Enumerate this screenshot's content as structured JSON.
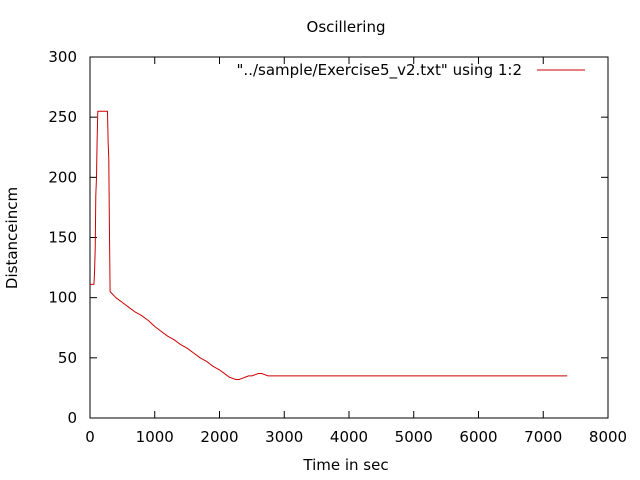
{
  "chart_data": {
    "type": "line",
    "title": "Oscillering",
    "xlabel": "Time in sec",
    "ylabel": "Distanceincm",
    "xlim": [
      0,
      8000
    ],
    "ylim": [
      0,
      300
    ],
    "xticks": [
      0,
      1000,
      2000,
      3000,
      4000,
      5000,
      6000,
      7000,
      8000
    ],
    "yticks": [
      0,
      50,
      100,
      150,
      200,
      250,
      300
    ],
    "xtick_labels": [
      "0",
      "1000",
      "2000",
      "3000",
      "4000",
      "5000",
      "6000",
      "7000",
      "8000"
    ],
    "ytick_labels": [
      "0",
      "50",
      "100",
      "150",
      "200",
      "250",
      "300"
    ],
    "grid": false,
    "legend_position": "top-right",
    "colors": {
      "series": "#cc0000",
      "axes": "#000000"
    },
    "series": [
      {
        "name": "\"../sample/Exercise5_v2.txt\" using 1:2",
        "x": [
          0,
          60,
          70,
          80,
          90,
          100,
          110,
          120,
          270,
          280,
          290,
          300,
          310,
          400,
          500,
          600,
          700,
          800,
          900,
          1000,
          1100,
          1200,
          1300,
          1400,
          1500,
          1600,
          1700,
          1800,
          1900,
          2000,
          2100,
          2150,
          2200,
          2250,
          2300,
          2350,
          2400,
          2450,
          2500,
          2550,
          2600,
          2650,
          2700,
          2750,
          2800,
          3000,
          4000,
          5000,
          6000,
          7000,
          7370
        ],
        "y": [
          111,
          111,
          120,
          140,
          185,
          200,
          230,
          255,
          255,
          230,
          215,
          160,
          105,
          100,
          96,
          92,
          88,
          85,
          81,
          76,
          72,
          68,
          65,
          61,
          58,
          54,
          50,
          47,
          43,
          40,
          36,
          34,
          33,
          32,
          32,
          33,
          34,
          35,
          35,
          36,
          37,
          37,
          36,
          35,
          35,
          35,
          35,
          35,
          35,
          35,
          35
        ]
      }
    ]
  }
}
